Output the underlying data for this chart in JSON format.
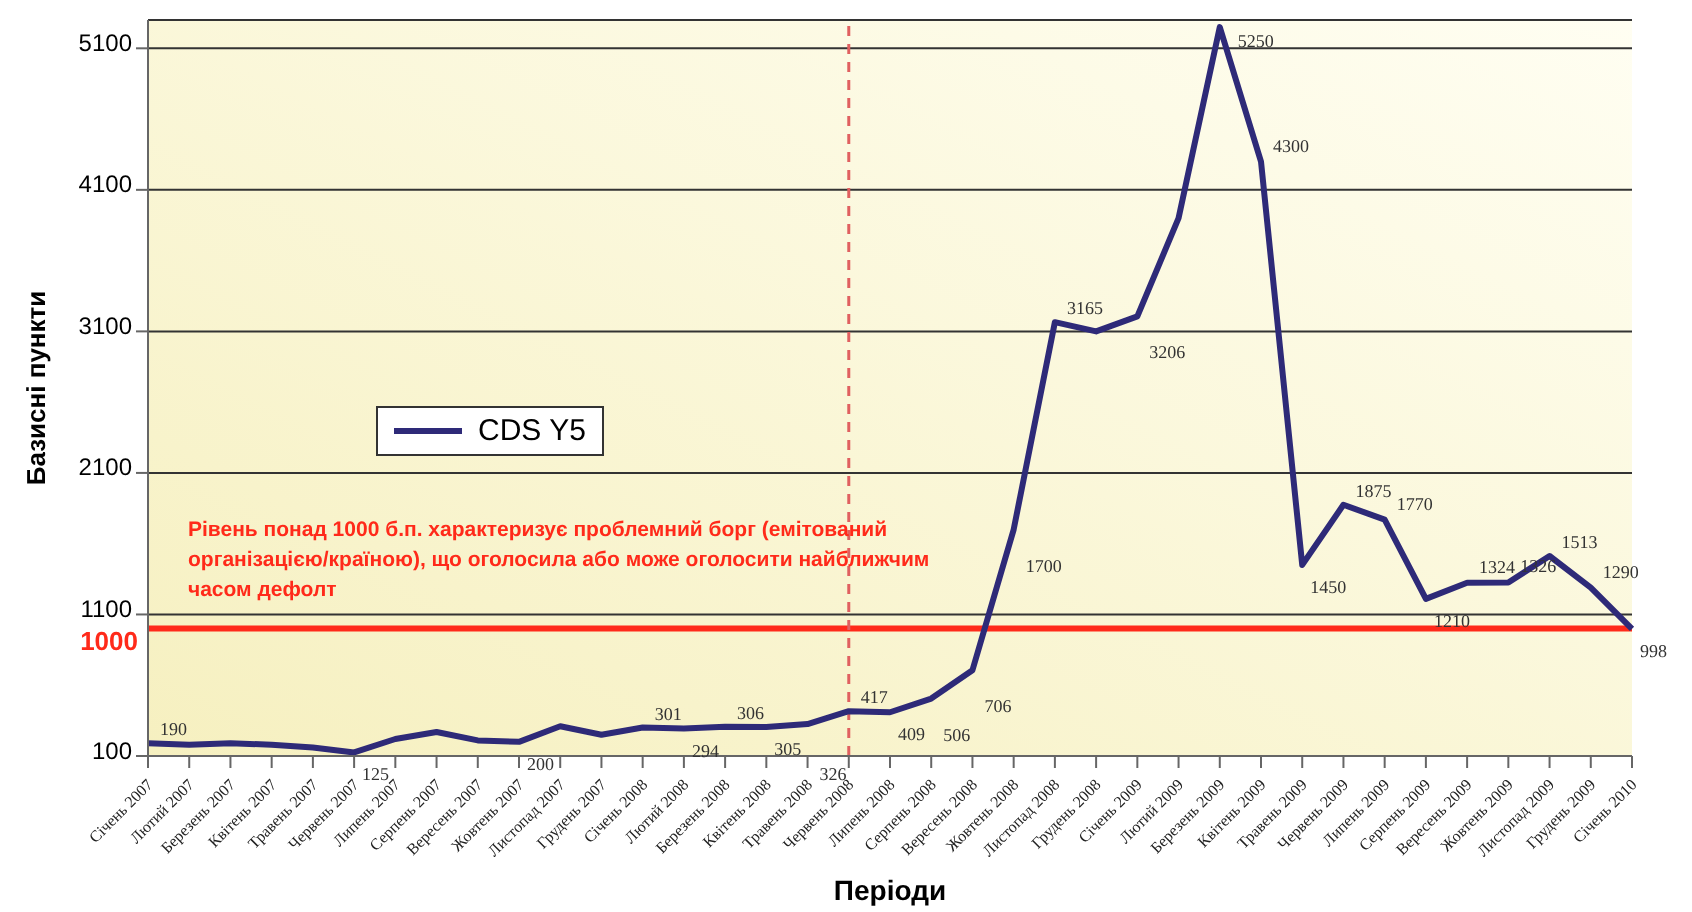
{
  "chart_data": {
    "type": "line",
    "ylabel": "Базисні пункти",
    "xlabel": "Періоди",
    "categories": [
      "Січень 2007",
      "Лютий 2007",
      "Березень 2007",
      "Квітень 2007",
      "Травень 2007",
      "Червень 2007",
      "Липень 2007",
      "Серпень 2007",
      "Вересень 2007",
      "Жовтень 2007",
      "Листопад 2007",
      "Грудень 2007",
      "Січень 2008",
      "Лютий 2008",
      "Березень 2008",
      "Квітень 2008",
      "Травень 2008",
      "Червень 2008",
      "Липень 2008",
      "Серпень 2008",
      "Вересень 2008",
      "Жовтень 2008",
      "Листопад 2008",
      "Грудень 2008",
      "Січень 2009",
      "Лютий 2009",
      "Березень 2009",
      "Квітень 2009",
      "Травень 2009",
      "Червень 2009",
      "Липень 2009",
      "Серпень 2009",
      "Вересень 2009",
      "Жовтень 2009",
      "Листопад 2009",
      "Грудень 2009",
      "Січень 2010"
    ],
    "series": [
      {
        "name": "CDS Y5",
        "color": "#2e2a78",
        "values": [
          190,
          180,
          190,
          180,
          160,
          125,
          220,
          270,
          210,
          200,
          310,
          250,
          301,
          294,
          306,
          305,
          326,
          417,
          409,
          506,
          706,
          1700,
          3165,
          3100,
          3206,
          3900,
          5250,
          4300,
          1450,
          1875,
          1770,
          1210,
          1324,
          1326,
          1513,
          1290,
          998
        ],
        "value_labels": [
          "190",
          null,
          null,
          null,
          null,
          "125",
          null,
          null,
          null,
          "200",
          null,
          null,
          "301",
          "294",
          "306",
          "305",
          "326",
          "417",
          "409",
          "506",
          "706",
          "1700",
          "3165",
          null,
          "3206",
          null,
          "5250",
          "4300",
          "1450",
          "1875",
          "1770",
          "1210",
          "1324",
          "1326",
          "1513",
          "1290",
          "998"
        ]
      }
    ],
    "ylim": [
      100,
      5300
    ],
    "yticks": [
      100,
      1100,
      2100,
      3100,
      4100,
      5100
    ],
    "grid": "y",
    "legend": "left",
    "marker": "none",
    "line_style": "solid",
    "ref_lines": [
      {
        "axis": "y",
        "value": 1000,
        "label": "1000",
        "color": "#ff2a1a",
        "line_style": "solid"
      },
      {
        "axis": "x",
        "value": "Червень 2008",
        "label": null,
        "color": "#e06060",
        "line_style": "dashed"
      }
    ],
    "annotations": [
      "Рівень понад 1000 б.п. характеризує проблемний борг (емітований організацією/країною), що оголосила або може оголосити найближчим часом дефолт"
    ]
  }
}
